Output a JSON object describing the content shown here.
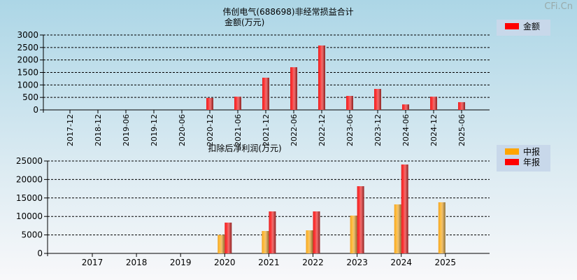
{
  "watermark": "CFi.Cn",
  "chart_data": [
    {
      "type": "bar",
      "title": "伟创电气(688698)非经常损益合计",
      "ylabel": "金额(万元)",
      "ylim": [
        0,
        3000
      ],
      "yticks": [
        0,
        500,
        1000,
        1500,
        2000,
        2500,
        3000
      ],
      "categories": [
        "2017-12",
        "2018-12",
        "2019-06",
        "2019-12",
        "2020-06",
        "2020-12",
        "2021-06",
        "2021-12",
        "2022-06",
        "2022-12",
        "2023-06",
        "2023-12",
        "2024-06",
        "2024-12",
        "2025-06"
      ],
      "series": [
        {
          "name": "金额",
          "color": "#ff0000",
          "values": [
            null,
            null,
            null,
            null,
            null,
            480,
            530,
            1290,
            1710,
            2580,
            560,
            840,
            220,
            530,
            310
          ]
        }
      ],
      "legend": "right"
    },
    {
      "type": "bar",
      "title": "扣除后净利润(万元)",
      "ylim": [
        0,
        25000
      ],
      "yticks": [
        0,
        5000,
        10000,
        15000,
        20000,
        25000
      ],
      "categories": [
        "2017",
        "2018",
        "2019",
        "2020",
        "2021",
        "2022",
        "2023",
        "2024",
        "2025"
      ],
      "series": [
        {
          "name": "中报",
          "color": "#ffa500",
          "values": [
            null,
            null,
            null,
            5000,
            6060,
            6250,
            10230,
            13260,
            13830
          ]
        },
        {
          "name": "年报",
          "color": "#ff0000",
          "values": [
            null,
            null,
            null,
            8330,
            11360,
            11360,
            18180,
            24050,
            null
          ]
        }
      ],
      "legend": "right"
    }
  ]
}
